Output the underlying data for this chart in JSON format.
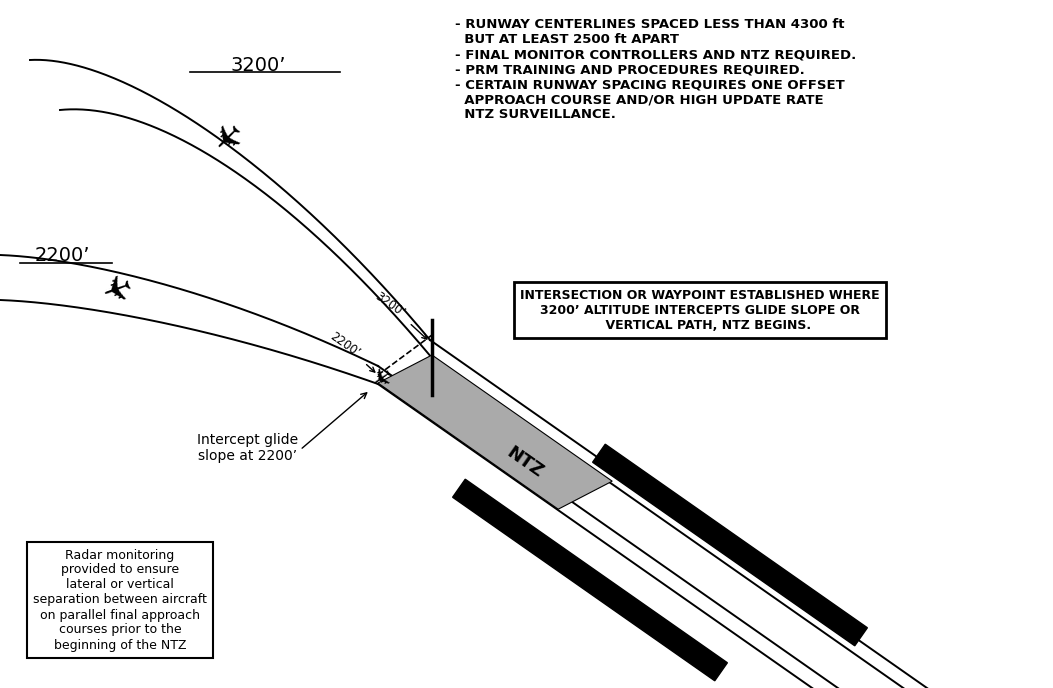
{
  "bg_color": "#ffffff",
  "line_color": "#000000",
  "ntz_color": "#aaaaaa",
  "runway_color": "#000000",
  "bullet_text": "- RUNWAY CENTERLINES SPACED LESS THAN 4300 ft\n  BUT AT LEAST 2500 ft APART\n- FINAL MONITOR CONTROLLERS AND NTZ REQUIRED.\n- PRM TRAINING AND PROCEDURES REQUIRED.\n- CERTAIN RUNWAY SPACING REQUIRES ONE OFFSET\n  APPROACH COURSE AND/OR HIGH UPDATE RATE\n  NTZ SURVEILLANCE.",
  "box_text": "INTERSECTION OR WAYPOINT ESTABLISHED WHERE\n3200’ ALTITUDE INTERCEPTS GLIDE SLOPE OR\n    VERTICAL PATH, NTZ BEGINS.",
  "intercept_text": "Intercept glide\nslope at 2200’",
  "radar_text": "Radar monitoring\nprovided to ensure\nlateral or vertical\nseparation between aircraft\non parallel final approach\ncourses prior to the\nbeginning of the NTZ",
  "label_3200_top": "3200’",
  "label_2200_left": "2200’",
  "label_3200_diag": "3200’",
  "label_2200_diag": "2200’",
  "ntz_label": "NTZ"
}
